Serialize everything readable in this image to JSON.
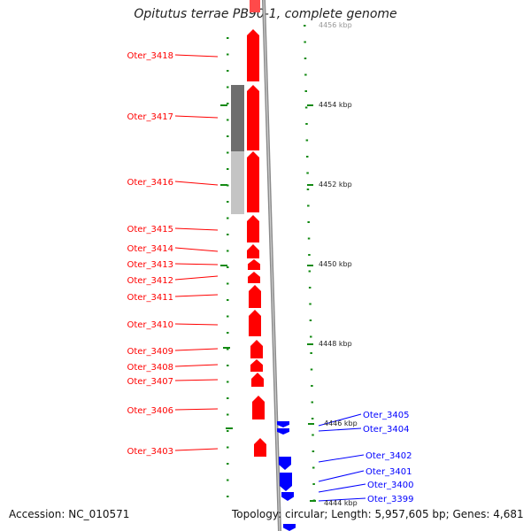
{
  "title": "Opitutus terrae PB90-1, complete genome",
  "accession_text": "Accession: NC_010571",
  "summary_text": "Topology: circular; Length: 5,957,605 bp; Genes: 4,681",
  "colors": {
    "forward_gene": "#ff0000",
    "reverse_gene": "#0000ff",
    "tick": "#138a13",
    "backbone": "#8a8a8a"
  },
  "scale_labels": [
    "4456 kbp",
    "4454 kbp",
    "4452 kbp",
    "4450 kbp",
    "4448 kbp",
    "4446 kbp",
    "4444 kbp"
  ],
  "forward_genes": [
    "Oter_3418",
    "Oter_3417",
    "Oter_3416",
    "Oter_3415",
    "Oter_3414",
    "Oter_3413",
    "Oter_3412",
    "Oter_3411",
    "Oter_3410",
    "Oter_3409",
    "Oter_3408",
    "Oter_3407",
    "Oter_3406",
    "Oter_3403"
  ],
  "reverse_genes": [
    "Oter_3405",
    "Oter_3404",
    "Oter_3402",
    "Oter_3401",
    "Oter_3400",
    "Oter_3399"
  ]
}
